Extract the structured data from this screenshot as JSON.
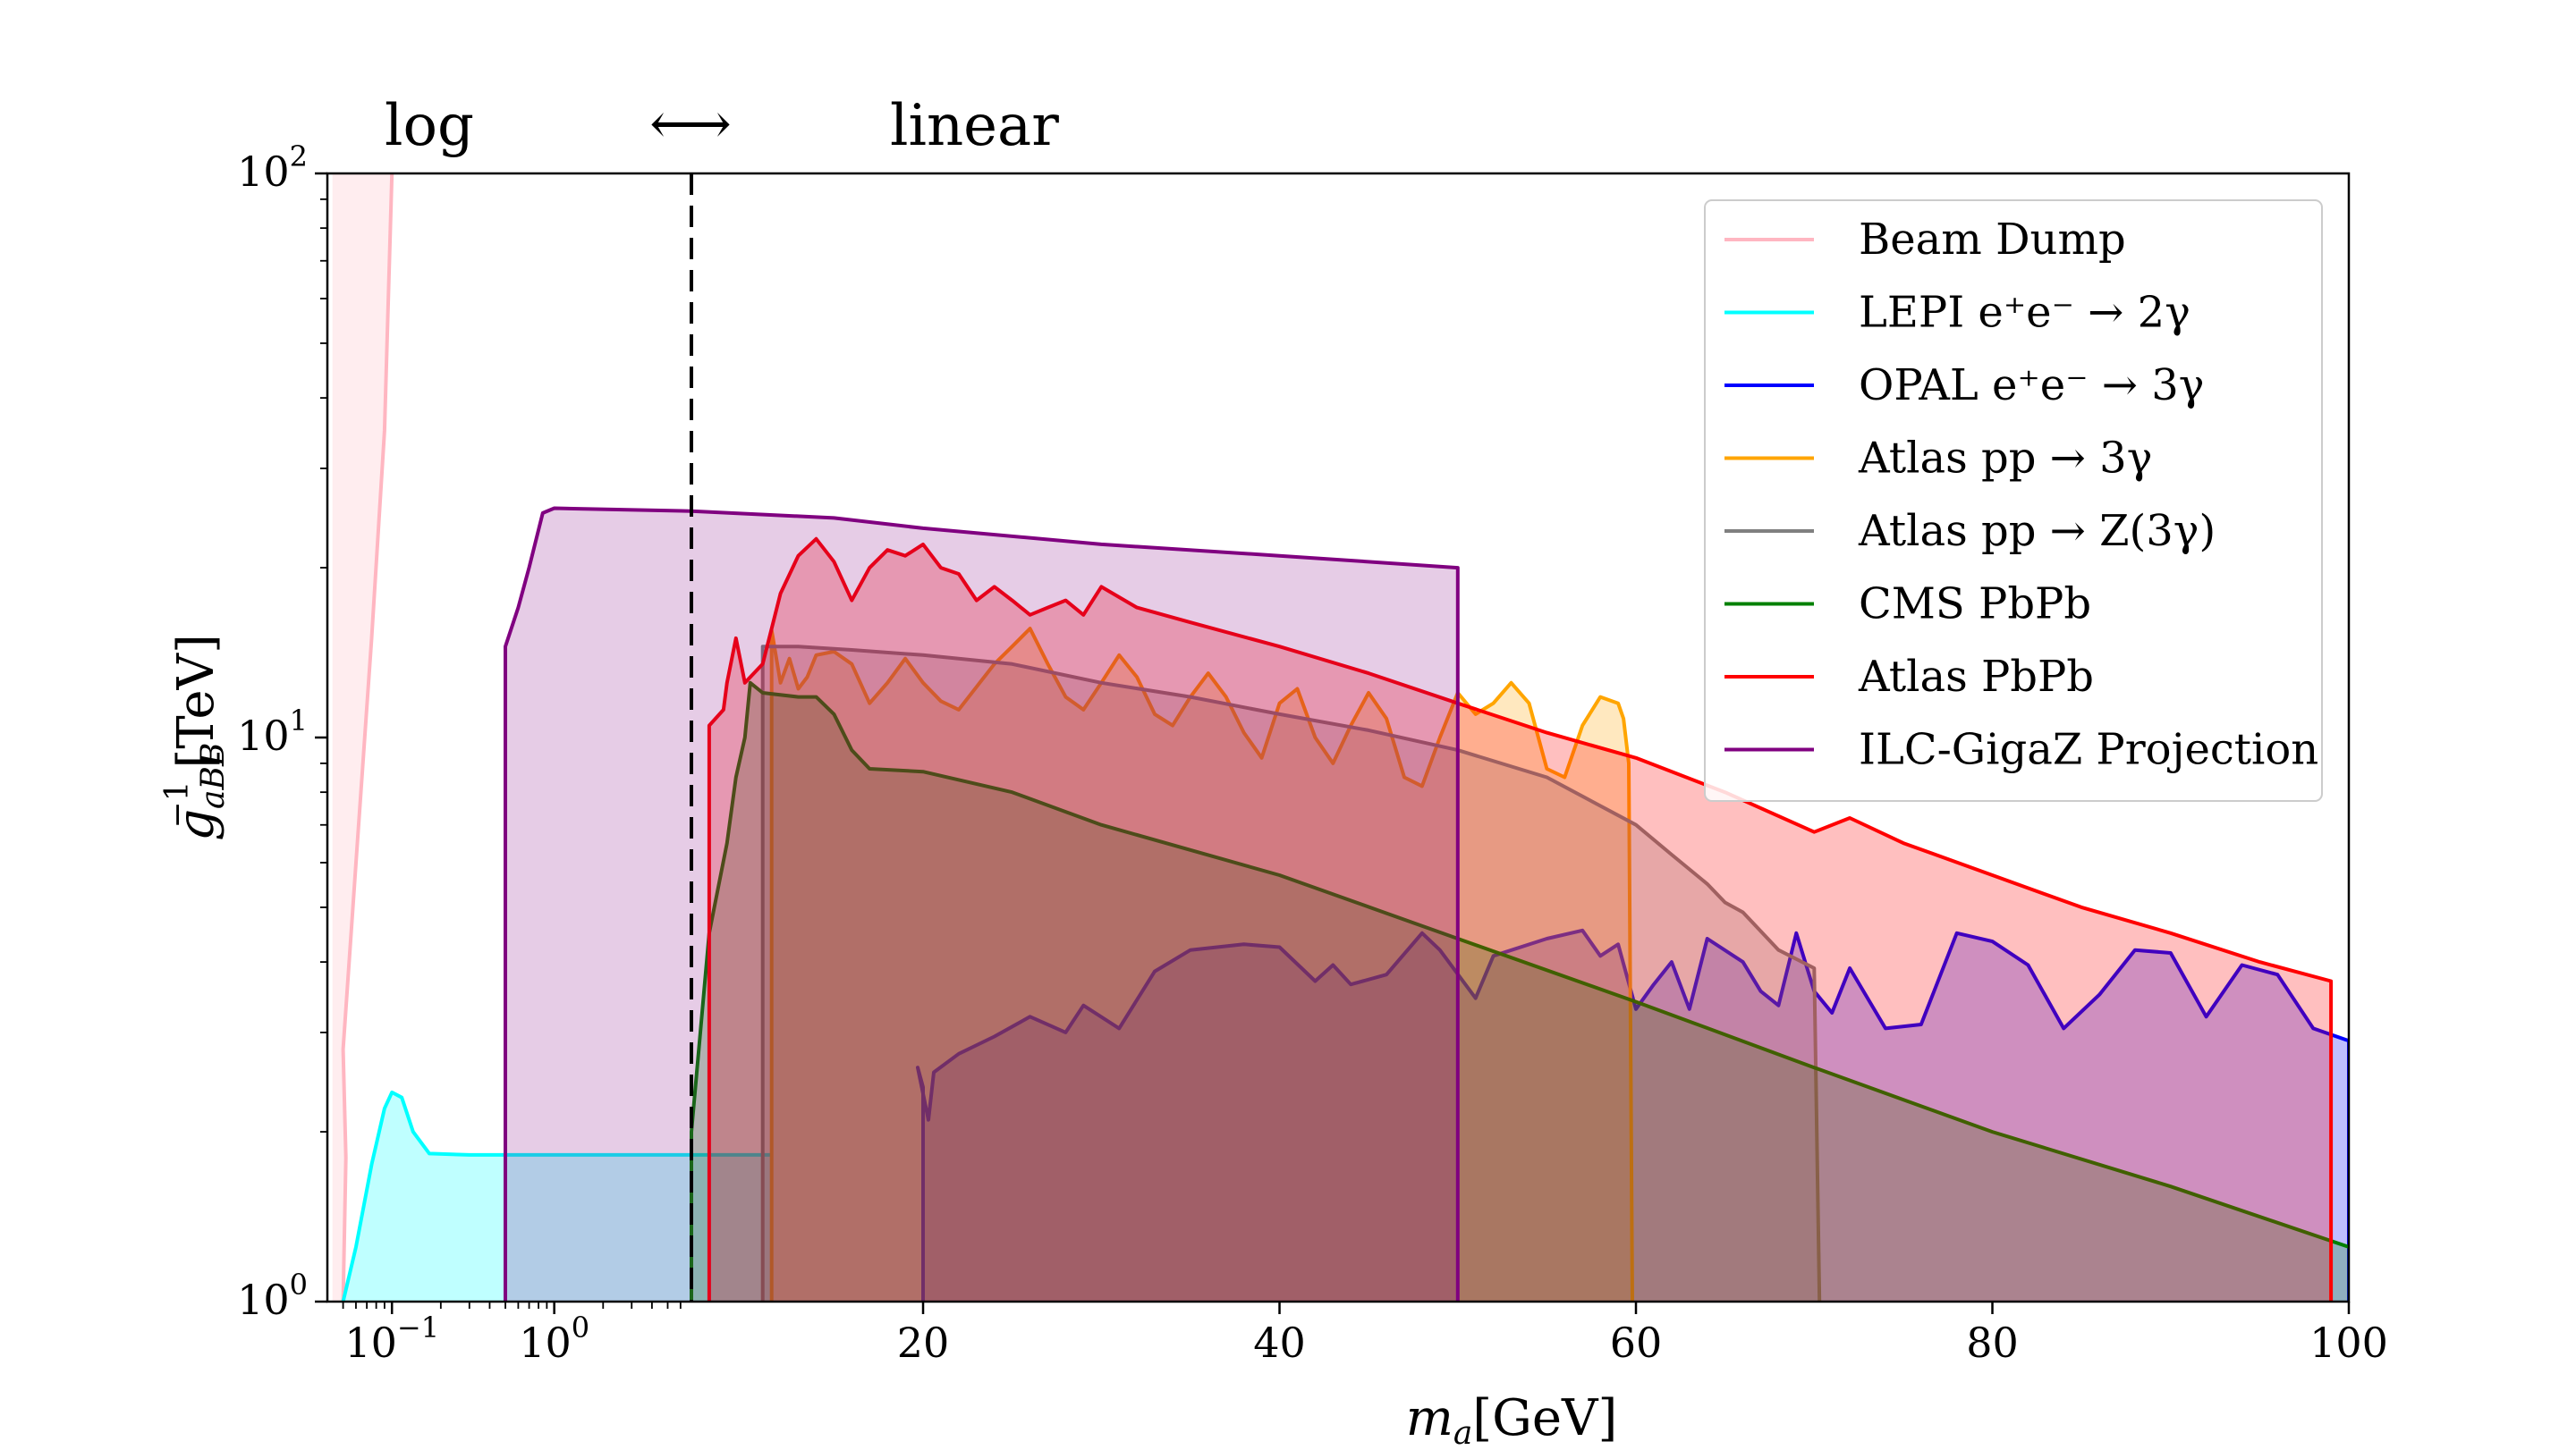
{
  "chart_data": {
    "type": "area",
    "xlabel": "m_a [GeV]",
    "xlabel_parts": {
      "main": "m",
      "sub": "a",
      "unit": "[GeV]"
    },
    "ylabel": "g_{aBB}^{-1} [TeV]",
    "ylabel_parts": {
      "main": "g",
      "sub": "aBB",
      "sup": "−1",
      "unit": "[TeV]"
    },
    "y_scale": "log",
    "ylim": [
      1,
      100
    ],
    "x_scale": "log below the dashed boundary, linear above",
    "x_log_range": [
      0.04,
      7
    ],
    "x_linear_range": [
      7,
      100
    ],
    "scale_boundary": 7,
    "scale_note": {
      "left": "log",
      "right": "linear",
      "arrow": "⟷"
    },
    "y_ticks": [
      {
        "value": 1,
        "base": "10",
        "exp": "0"
      },
      {
        "value": 10,
        "base": "10",
        "exp": "1"
      },
      {
        "value": 100,
        "base": "10",
        "exp": "2"
      }
    ],
    "x_ticks_log": [
      {
        "value": 0.1,
        "base": "10",
        "exp": "−1"
      },
      {
        "value": 1,
        "base": "10",
        "exp": "0"
      }
    ],
    "x_ticks_linear": [
      "20",
      "40",
      "60",
      "80",
      "100"
    ],
    "legend_position": "top-right",
    "series": [
      {
        "name": "Beam Dump",
        "color": "#ffb6c1",
        "fill_alpha": 0.25,
        "points": [
          [
            0.05,
            1
          ],
          [
            0.052,
            1.8
          ],
          [
            0.05,
            2.8
          ],
          [
            0.06,
            6
          ],
          [
            0.075,
            15
          ],
          [
            0.09,
            35
          ],
          [
            0.1,
            100
          ]
        ],
        "fill_polygon": [
          [
            0.043,
            1
          ],
          [
            0.043,
            100
          ],
          [
            0.1,
            100
          ],
          [
            0.09,
            35
          ],
          [
            0.075,
            15
          ],
          [
            0.06,
            6
          ],
          [
            0.05,
            2.8
          ],
          [
            0.052,
            1.8
          ],
          [
            0.05,
            1
          ]
        ]
      },
      {
        "name": "LEPI e⁺e⁻ → 2γ",
        "color": "#00ffff",
        "fill_alpha": 0.25,
        "points": [
          [
            0.05,
            1
          ],
          [
            0.06,
            1.25
          ],
          [
            0.075,
            1.75
          ],
          [
            0.09,
            2.2
          ],
          [
            0.1,
            2.35
          ],
          [
            0.115,
            2.3
          ],
          [
            0.135,
            2.0
          ],
          [
            0.17,
            1.83
          ],
          [
            0.3,
            1.82
          ],
          [
            1,
            1.82
          ],
          [
            7,
            1.82
          ],
          [
            11.5,
            1.82
          ]
        ],
        "fill_to_bottom": true
      },
      {
        "name": "OPAL e⁺e⁻ → 3γ",
        "color": "#0000ff",
        "fill_alpha": 0.25,
        "points": [
          [
            20,
            1
          ],
          [
            20,
            2.4
          ],
          [
            19.7,
            2.6
          ],
          [
            20.3,
            2.1
          ],
          [
            20.6,
            2.55
          ],
          [
            22,
            2.75
          ],
          [
            24,
            2.95
          ],
          [
            26,
            3.2
          ],
          [
            28,
            3.0
          ],
          [
            29,
            3.35
          ],
          [
            31,
            3.05
          ],
          [
            33,
            3.85
          ],
          [
            35,
            4.2
          ],
          [
            38,
            4.3
          ],
          [
            40,
            4.25
          ],
          [
            42,
            3.7
          ],
          [
            43,
            3.95
          ],
          [
            44,
            3.65
          ],
          [
            46,
            3.8
          ],
          [
            48,
            4.5
          ],
          [
            49,
            4.2
          ],
          [
            51,
            3.45
          ],
          [
            52,
            4.1
          ],
          [
            55,
            4.4
          ],
          [
            57,
            4.55
          ],
          [
            58,
            4.1
          ],
          [
            59,
            4.3
          ],
          [
            60,
            3.3
          ],
          [
            61,
            3.65
          ],
          [
            62,
            4.0
          ],
          [
            63,
            3.3
          ],
          [
            64,
            4.4
          ],
          [
            66,
            4.0
          ],
          [
            67,
            3.55
          ],
          [
            68,
            3.35
          ],
          [
            69,
            4.5
          ],
          [
            70,
            3.55
          ],
          [
            71,
            3.25
          ],
          [
            72,
            3.9
          ],
          [
            74,
            3.05
          ],
          [
            76,
            3.1
          ],
          [
            78,
            4.5
          ],
          [
            80,
            4.35
          ],
          [
            82,
            3.95
          ],
          [
            84,
            3.05
          ],
          [
            86,
            3.5
          ],
          [
            88,
            4.2
          ],
          [
            90,
            4.15
          ],
          [
            92,
            3.2
          ],
          [
            94,
            3.95
          ],
          [
            96,
            3.8
          ],
          [
            98,
            3.05
          ],
          [
            100,
            2.9
          ],
          [
            100,
            1
          ]
        ],
        "fill_to_bottom": true
      },
      {
        "name": "Atlas pp → 3γ",
        "color": "#ffa500",
        "fill_alpha": 0.25,
        "points": [
          [
            11.5,
            1
          ],
          [
            11.5,
            15.5
          ],
          [
            12,
            12.5
          ],
          [
            12.5,
            13.8
          ],
          [
            13,
            12.2
          ],
          [
            13.5,
            12.8
          ],
          [
            14,
            14
          ],
          [
            15,
            14.2
          ],
          [
            16,
            13.5
          ],
          [
            17,
            11.5
          ],
          [
            18,
            12.5
          ],
          [
            19,
            13.8
          ],
          [
            20,
            12.5
          ],
          [
            21,
            11.6
          ],
          [
            22,
            11.2
          ],
          [
            23,
            12.3
          ],
          [
            24,
            13.5
          ],
          [
            25,
            14.5
          ],
          [
            26,
            15.6
          ],
          [
            27,
            13.5
          ],
          [
            28,
            11.8
          ],
          [
            29,
            11.2
          ],
          [
            30,
            12.5
          ],
          [
            31,
            14.0
          ],
          [
            32,
            12.8
          ],
          [
            33,
            11.0
          ],
          [
            34,
            10.5
          ],
          [
            35,
            11.8
          ],
          [
            36,
            13.0
          ],
          [
            37,
            11.8
          ],
          [
            38,
            10.2
          ],
          [
            39,
            9.2
          ],
          [
            40,
            11.5
          ],
          [
            41,
            12.2
          ],
          [
            42,
            10.0
          ],
          [
            43,
            9.0
          ],
          [
            44,
            10.5
          ],
          [
            45,
            12.0
          ],
          [
            46,
            10.8
          ],
          [
            47,
            8.5
          ],
          [
            48,
            8.2
          ],
          [
            49,
            10.0
          ],
          [
            50,
            12.0
          ],
          [
            51,
            11.0
          ],
          [
            52,
            11.5
          ],
          [
            53,
            12.5
          ],
          [
            54,
            11.5
          ],
          [
            55,
            8.8
          ],
          [
            56,
            8.5
          ],
          [
            57,
            10.5
          ],
          [
            58,
            11.8
          ],
          [
            59,
            11.5
          ],
          [
            59.3,
            10.8
          ],
          [
            59.6,
            9.0
          ],
          [
            59.8,
            1
          ]
        ],
        "fill_to_bottom": true
      },
      {
        "name": "Atlas pp → Z(3γ)",
        "color": "#808080",
        "fill_alpha": 0.25,
        "points": [
          [
            11,
            1
          ],
          [
            11,
            14.5
          ],
          [
            13,
            14.5
          ],
          [
            16,
            14.3
          ],
          [
            20,
            14.0
          ],
          [
            25,
            13.5
          ],
          [
            30,
            12.5
          ],
          [
            35,
            11.8
          ],
          [
            40,
            11.0
          ],
          [
            45,
            10.3
          ],
          [
            50,
            9.5
          ],
          [
            55,
            8.5
          ],
          [
            60,
            7.0
          ],
          [
            62,
            6.2
          ],
          [
            64,
            5.5
          ],
          [
            65,
            5.1
          ],
          [
            66,
            4.9
          ],
          [
            68,
            4.2
          ],
          [
            70,
            3.9
          ],
          [
            70.3,
            1
          ]
        ],
        "fill_to_bottom": true
      },
      {
        "name": "CMS PbPb",
        "color": "#008000",
        "fill_alpha": 0.25,
        "points": [
          [
            7,
            1
          ],
          [
            7,
            2.0
          ],
          [
            7.5,
            3.0
          ],
          [
            8,
            4.5
          ],
          [
            9,
            6.5
          ],
          [
            9.5,
            8.5
          ],
          [
            10,
            10.0
          ],
          [
            10.3,
            12.5
          ],
          [
            11,
            12.0
          ],
          [
            13,
            11.8
          ],
          [
            14,
            11.8
          ],
          [
            15,
            11.0
          ],
          [
            16,
            9.5
          ],
          [
            17,
            8.8
          ],
          [
            20,
            8.7
          ],
          [
            25,
            8.0
          ],
          [
            30,
            7.0
          ],
          [
            40,
            5.7
          ],
          [
            50,
            4.4
          ],
          [
            60,
            3.4
          ],
          [
            70,
            2.6
          ],
          [
            80,
            2.0
          ],
          [
            90,
            1.6
          ],
          [
            100,
            1.25
          ]
        ],
        "fill_to_bottom": true
      },
      {
        "name": "Atlas PbPb",
        "color": "#ff0000",
        "fill_alpha": 0.25,
        "points": [
          [
            8,
            1
          ],
          [
            8,
            10.5
          ],
          [
            8.8,
            11.2
          ],
          [
            9,
            12.5
          ],
          [
            9.5,
            15
          ],
          [
            10,
            12.5
          ],
          [
            11,
            13.5
          ],
          [
            12,
            18
          ],
          [
            13,
            21
          ],
          [
            14,
            22.5
          ],
          [
            15,
            20.5
          ],
          [
            16,
            17.5
          ],
          [
            17,
            20
          ],
          [
            18,
            21.5
          ],
          [
            19,
            21
          ],
          [
            20,
            22
          ],
          [
            21,
            20
          ],
          [
            22,
            19.5
          ],
          [
            23,
            17.5
          ],
          [
            24,
            18.5
          ],
          [
            25,
            17.5
          ],
          [
            26,
            16.5
          ],
          [
            27,
            17
          ],
          [
            28,
            17.5
          ],
          [
            29,
            16.5
          ],
          [
            30,
            18.5
          ],
          [
            32,
            17
          ],
          [
            35,
            16
          ],
          [
            40,
            14.5
          ],
          [
            45,
            13.0
          ],
          [
            50,
            11.5
          ],
          [
            55,
            10.2
          ],
          [
            60,
            9.2
          ],
          [
            65,
            8.0
          ],
          [
            70,
            6.8
          ],
          [
            72,
            7.2
          ],
          [
            75,
            6.5
          ],
          [
            80,
            5.7
          ],
          [
            85,
            5.0
          ],
          [
            90,
            4.5
          ],
          [
            95,
            4.0
          ],
          [
            99,
            3.7
          ],
          [
            99,
            1
          ]
        ],
        "fill_to_bottom": true
      },
      {
        "name": "ILC-GigaZ Projection",
        "color": "#800080",
        "fill_alpha": 0.2,
        "points": [
          [
            0.5,
            1
          ],
          [
            0.5,
            14.5
          ],
          [
            0.6,
            17
          ],
          [
            0.7,
            20
          ],
          [
            0.85,
            25
          ],
          [
            1,
            25.5
          ],
          [
            7,
            25.2
          ],
          [
            15,
            24.5
          ],
          [
            20,
            23.5
          ],
          [
            30,
            22.0
          ],
          [
            40,
            21.0
          ],
          [
            50,
            20.0
          ],
          [
            50,
            1
          ]
        ],
        "fill_to_bottom": true
      }
    ]
  }
}
